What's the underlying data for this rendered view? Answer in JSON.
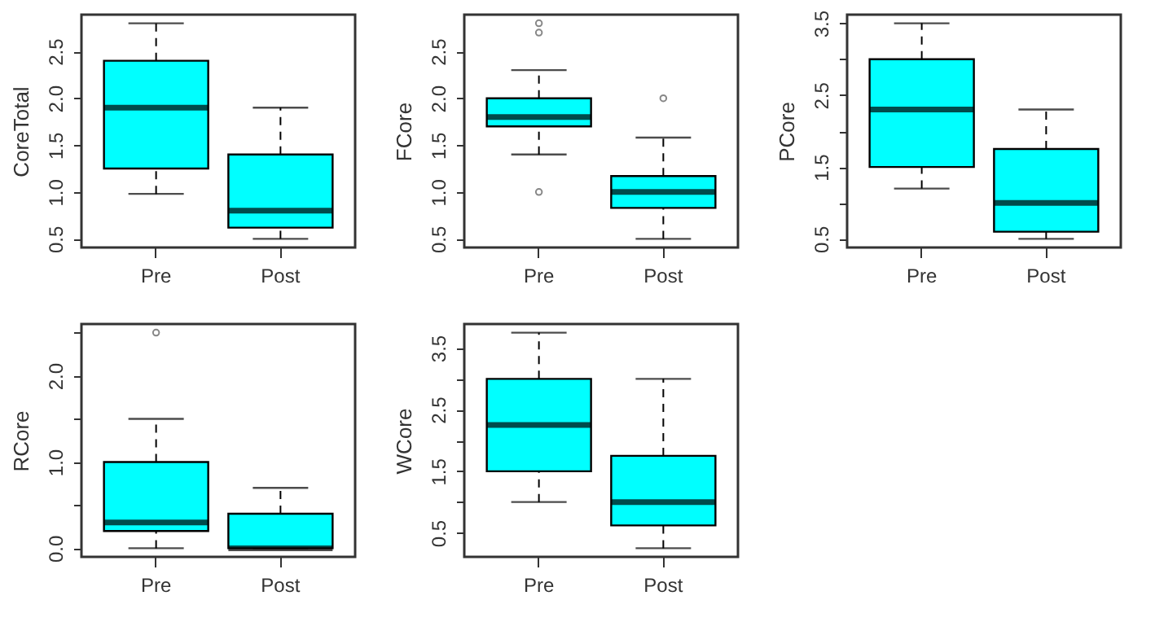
{
  "chart_data": [
    {
      "type": "box",
      "ylabel": "CoreTotal",
      "categories": [
        "Pre",
        "Post"
      ],
      "ylim": [
        0.408,
        2.892
      ],
      "yticks": [
        0.5,
        {
          "value": 1,
          "label": "1.0"
        },
        1.5,
        {
          "value": 2,
          "label": "2.0"
        },
        2.5
      ],
      "series": [
        {
          "color": "#00ffff",
          "boxes": [
            {
              "low": 0.98,
              "q1": 1.25,
              "median": 1.9,
              "q3": 2.4,
              "high": 2.8
            },
            {
              "low": 0.5,
              "q1": 0.62,
              "median": 0.8,
              "q3": 1.4,
              "high": 1.9
            }
          ]
        }
      ]
    },
    {
      "type": "box",
      "ylabel": "FCore",
      "categories": [
        "Pre",
        "Post"
      ],
      "ylim": [
        0.408,
        2.892
      ],
      "yticks": [
        0.5,
        {
          "value": 1,
          "label": "1.0"
        },
        1.5,
        {
          "value": 2,
          "label": "2.0"
        },
        2.5
      ],
      "series": [
        {
          "color": "#00ffff",
          "boxes": [
            {
              "low": 1.4,
              "q1": 1.7,
              "median": 1.8,
              "q3": 2.0,
              "high": 2.3,
              "outliers": [
                1.0,
                2.7,
                2.8
              ]
            },
            {
              "low": 0.5,
              "q1": 0.83,
              "median": 1.0,
              "q3": 1.17,
              "high": 1.58,
              "outliers": [
                2.0
              ]
            }
          ]
        }
      ]
    },
    {
      "type": "box",
      "ylabel": "PCore",
      "categories": [
        "Pre",
        "Post"
      ],
      "ylim": [
        0.38,
        3.62
      ],
      "yticks": [
        0.5,
        {
          "value": 1,
          "label": null
        },
        1.5,
        {
          "value": 2,
          "label": null
        },
        2.5,
        {
          "value": 3,
          "label": null
        },
        3.5
      ],
      "series": [
        {
          "color": "#00ffff",
          "boxes": [
            {
              "low": 1.2,
              "q1": 1.5,
              "median": 2.3,
              "q3": 3.0,
              "high": 3.5
            },
            {
              "low": 0.5,
              "q1": 0.6,
              "median": 1.0,
              "q3": 1.75,
              "high": 2.3
            }
          ]
        }
      ]
    },
    {
      "type": "box",
      "ylabel": "RCore",
      "categories": [
        "Pre",
        "Post"
      ],
      "ylim": [
        -0.1,
        2.6
      ],
      "yticks": [
        {
          "value": 0,
          "label": "0.0"
        },
        {
          "value": 0.5,
          "label": null
        },
        {
          "value": 1,
          "label": "1.0"
        },
        {
          "value": 1.5,
          "label": null
        },
        {
          "value": 2,
          "label": "2.0"
        },
        {
          "value": 2.5,
          "label": null
        }
      ],
      "series": [
        {
          "color": "#00ffff",
          "boxes": [
            {
              "low": 0,
              "q1": 0.2,
              "median": 0.3,
              "q3": 1.0,
              "high": 1.5,
              "outliers": [
                2.5
              ]
            },
            {
              "low": 0,
              "q1": 0,
              "median": 0,
              "q3": 0.4,
              "high": 0.7
            }
          ]
        }
      ]
    },
    {
      "type": "box",
      "ylabel": "WCore",
      "categories": [
        "Pre",
        "Post"
      ],
      "ylim": [
        0.11,
        3.89
      ],
      "yticks": [
        0.5,
        {
          "value": 1,
          "label": null
        },
        1.5,
        {
          "value": 2,
          "label": null
        },
        2.5,
        {
          "value": 3,
          "label": null
        },
        3.5
      ],
      "series": [
        {
          "color": "#00ffff",
          "boxes": [
            {
              "low": 1.0,
              "q1": 1.5,
              "median": 2.25,
              "q3": 3.0,
              "high": 3.75
            },
            {
              "low": 0.25,
              "q1": 0.62,
              "median": 1.0,
              "q3": 1.75,
              "high": 3.0
            }
          ]
        }
      ]
    }
  ]
}
